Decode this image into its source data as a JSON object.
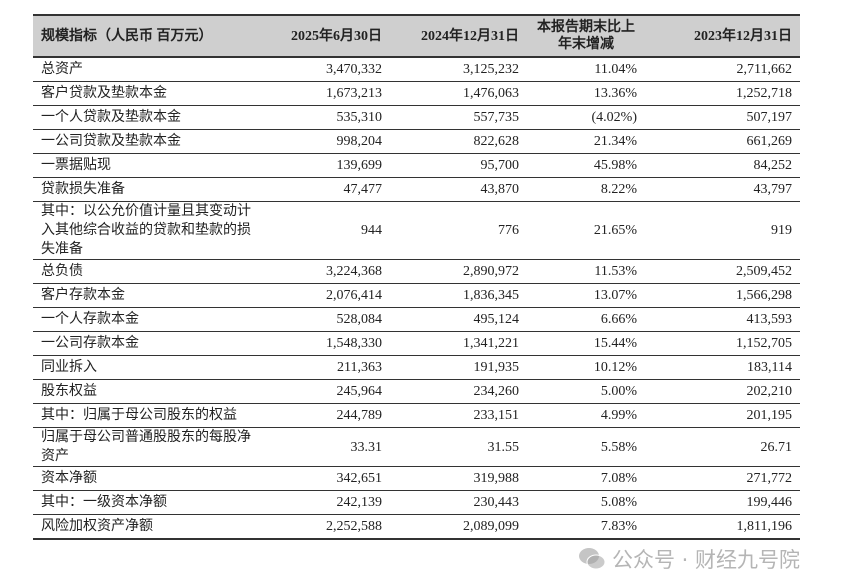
{
  "table": {
    "headers": [
      "规模指标（人民币 百万元）",
      "2025年6月30日",
      "2024年12月31日",
      "本报告期末比上年末增减",
      "2023年12月31日"
    ],
    "rows": [
      [
        "总资产",
        "3,470,332",
        "3,125,232",
        "11.04%",
        "2,711,662"
      ],
      [
        "客户贷款及垫款本金",
        "1,673,213",
        "1,476,063",
        "13.36%",
        "1,252,718"
      ],
      [
        "一个人贷款及垫款本金",
        "535,310",
        "557,735",
        "(4.02%)",
        "507,197"
      ],
      [
        "一公司贷款及垫款本金",
        "998,204",
        "822,628",
        "21.34%",
        "661,269"
      ],
      [
        "一票据贴现",
        "139,699",
        "95,700",
        "45.98%",
        "84,252"
      ],
      [
        "贷款损失准备",
        "47,477",
        "43,870",
        "8.22%",
        "43,797"
      ],
      [
        "其中：以公允价值计量且其变动计入其他综合收益的贷款和垫款的损失准备",
        "944",
        "776",
        "21.65%",
        "919"
      ],
      [
        "总负债",
        "3,224,368",
        "2,890,972",
        "11.53%",
        "2,509,452"
      ],
      [
        "客户存款本金",
        "2,076,414",
        "1,836,345",
        "13.07%",
        "1,566,298"
      ],
      [
        "一个人存款本金",
        "528,084",
        "495,124",
        "6.66%",
        "413,593"
      ],
      [
        "一公司存款本金",
        "1,548,330",
        "1,341,221",
        "15.44%",
        "1,152,705"
      ],
      [
        "同业拆入",
        "211,363",
        "191,935",
        "10.12%",
        "183,114"
      ],
      [
        "股东权益",
        "245,964",
        "234,260",
        "5.00%",
        "202,210"
      ],
      [
        "其中：归属于母公司股东的权益",
        "244,789",
        "233,151",
        "4.99%",
        "201,195"
      ],
      [
        "归属于母公司普通股股东的每股净资产",
        "33.31",
        "31.55",
        "5.58%",
        "26.71"
      ],
      [
        "资本净额",
        "342,651",
        "319,988",
        "7.08%",
        "271,772"
      ],
      [
        "其中：一级资本净额",
        "242,139",
        "230,443",
        "5.08%",
        "199,446"
      ],
      [
        "风险加权资产净额",
        "2,252,588",
        "2,089,099",
        "7.83%",
        "1,811,196"
      ]
    ]
  },
  "watermark": {
    "text": "公众号 · 财经九号院",
    "icon": "wechat-icon"
  }
}
